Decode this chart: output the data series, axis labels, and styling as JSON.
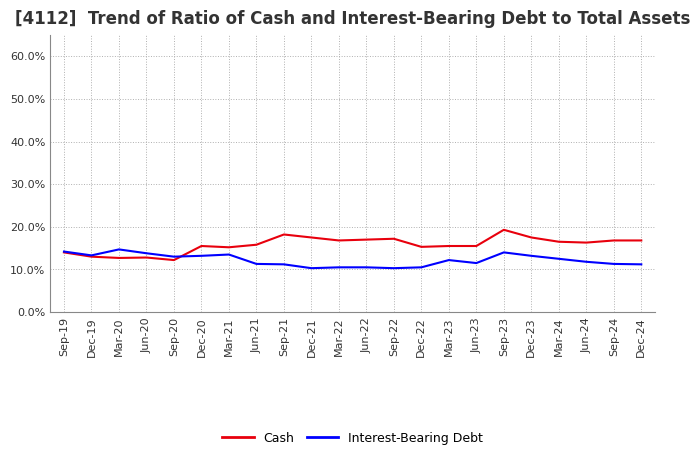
{
  "title": "[4112]  Trend of Ratio of Cash and Interest-Bearing Debt to Total Assets",
  "x_labels": [
    "Sep-19",
    "Dec-19",
    "Mar-20",
    "Jun-20",
    "Sep-20",
    "Dec-20",
    "Mar-21",
    "Jun-21",
    "Sep-21",
    "Dec-21",
    "Mar-22",
    "Jun-22",
    "Sep-22",
    "Dec-22",
    "Mar-23",
    "Jun-23",
    "Sep-23",
    "Dec-23",
    "Mar-24",
    "Jun-24",
    "Sep-24",
    "Dec-24"
  ],
  "cash": [
    0.14,
    0.13,
    0.127,
    0.128,
    0.122,
    0.155,
    0.152,
    0.158,
    0.182,
    0.175,
    0.168,
    0.17,
    0.172,
    0.153,
    0.155,
    0.155,
    0.193,
    0.175,
    0.165,
    0.163,
    0.168,
    0.168
  ],
  "interest_bearing_debt": [
    0.142,
    0.133,
    0.147,
    0.138,
    0.13,
    0.132,
    0.135,
    0.113,
    0.112,
    0.103,
    0.105,
    0.105,
    0.103,
    0.105,
    0.122,
    0.115,
    0.14,
    0.132,
    0.125,
    0.118,
    0.113,
    0.112
  ],
  "cash_color": "#e8000d",
  "debt_color": "#0000ff",
  "ylim": [
    0.0,
    0.65
  ],
  "yticks": [
    0.0,
    0.1,
    0.2,
    0.3,
    0.4,
    0.5,
    0.6
  ],
  "background_color": "#ffffff",
  "grid_color": "#b0b0b0",
  "title_fontsize": 12,
  "tick_fontsize": 8,
  "legend_cash": "Cash",
  "legend_debt": "Interest-Bearing Debt"
}
